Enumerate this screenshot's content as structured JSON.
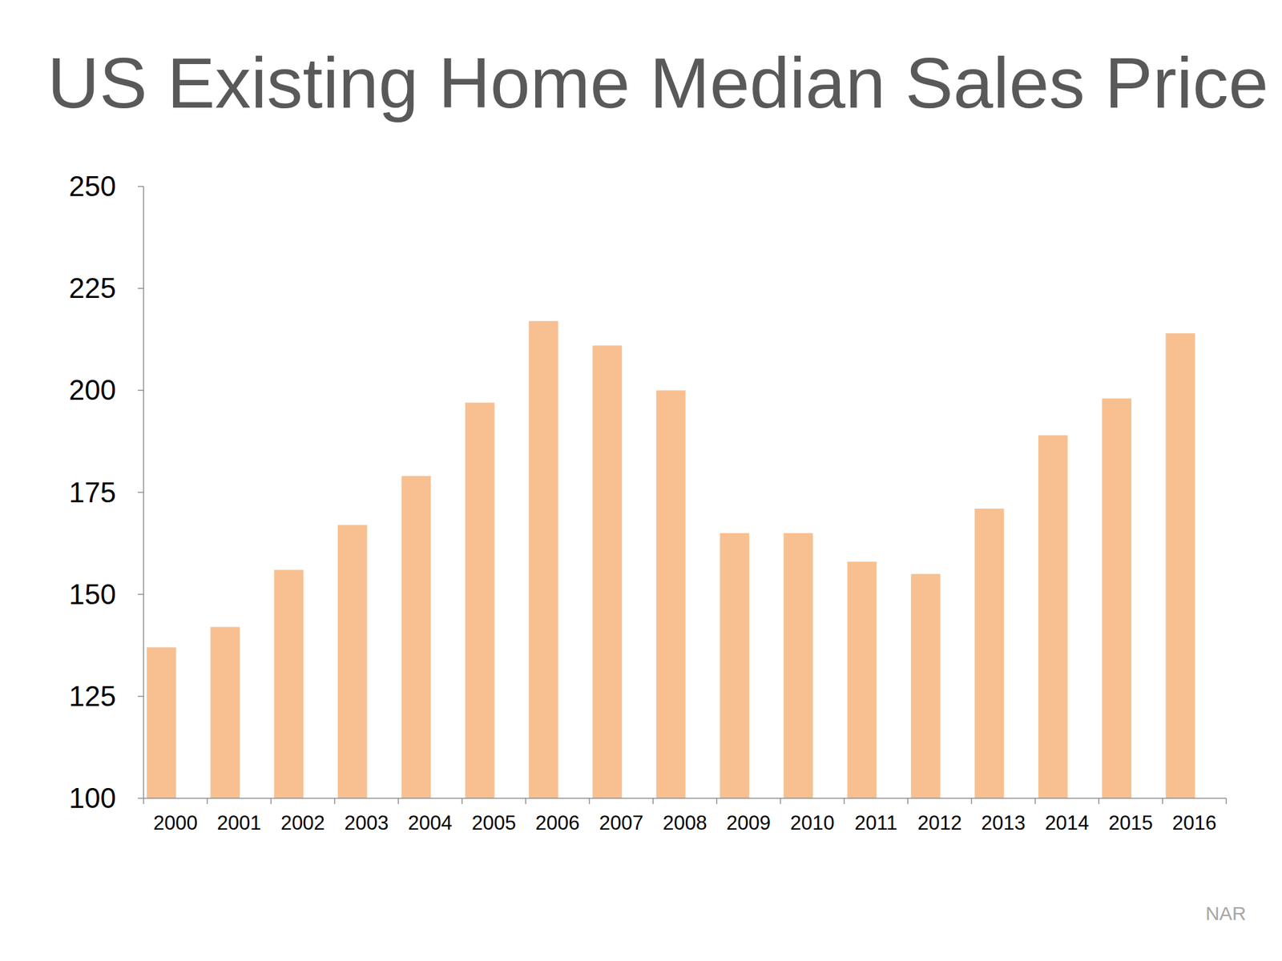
{
  "chart_data": {
    "type": "bar",
    "title": "US Existing Home Median Sales Price",
    "source": "NAR",
    "categories": [
      "2000",
      "2001",
      "2002",
      "2003",
      "2004",
      "2005",
      "2006",
      "2007",
      "2008",
      "2009",
      "2010",
      "2011",
      "2012",
      "2013",
      "2014",
      "2015",
      "2016"
    ],
    "values": [
      137,
      142,
      156,
      167,
      179,
      197,
      217,
      211,
      200,
      165,
      165,
      158,
      155,
      171,
      189,
      198,
      214
    ],
    "color": "#f8c090",
    "ylim": [
      100,
      250
    ],
    "yticks": [
      100,
      125,
      150,
      175,
      200,
      225,
      250
    ],
    "grid": false
  }
}
